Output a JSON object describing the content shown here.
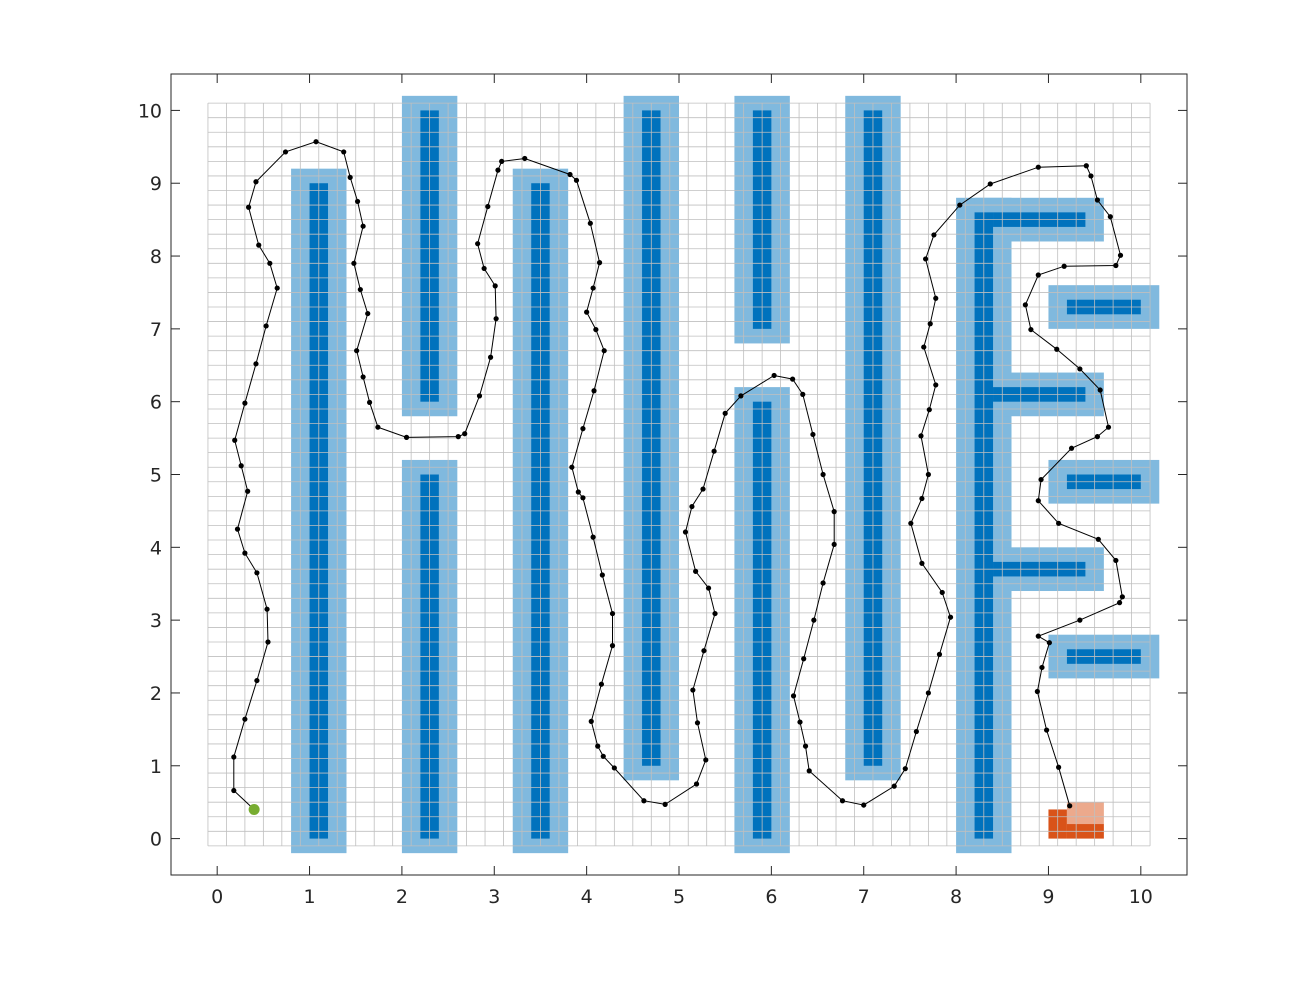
{
  "chart_data": {
    "type": "path-planning map",
    "xlim": [
      -0.5,
      10.5
    ],
    "ylim": [
      -0.5,
      10.5
    ],
    "xticks": [
      "0",
      "1",
      "2",
      "3",
      "4",
      "5",
      "6",
      "7",
      "8",
      "9",
      "10"
    ],
    "yticks": [
      "0",
      "1",
      "2",
      "3",
      "4",
      "5",
      "6",
      "7",
      "8",
      "9",
      "10"
    ],
    "grid_spacing": 0.2,
    "grid_range": {
      "x": [
        -0.1,
        10.1
      ],
      "y": [
        -0.1,
        10.1
      ]
    },
    "obstacle_inflation": 0.2,
    "colors": {
      "obstacle": "#0072BD",
      "inflation": "#80B9DE",
      "grid": "#BFBFBF",
      "path": "#000000",
      "start": "#77AC30",
      "goal": "#D95319",
      "goal_light": "#ECA98C"
    },
    "obstacles": [
      {
        "x": [
          1.0,
          1.2
        ],
        "y": [
          0.0,
          9.0
        ]
      },
      {
        "x": [
          2.2,
          2.4
        ],
        "y": [
          6.0,
          10.0
        ]
      },
      {
        "x": [
          2.2,
          2.4
        ],
        "y": [
          0.0,
          5.0
        ]
      },
      {
        "x": [
          3.4,
          3.6
        ],
        "y": [
          0.0,
          9.0
        ]
      },
      {
        "x": [
          4.6,
          4.8
        ],
        "y": [
          1.0,
          10.0
        ]
      },
      {
        "x": [
          5.8,
          6.0
        ],
        "y": [
          7.0,
          10.0
        ]
      },
      {
        "x": [
          5.8,
          6.0
        ],
        "y": [
          0.0,
          6.0
        ]
      },
      {
        "x": [
          7.0,
          7.2
        ],
        "y": [
          1.0,
          10.0
        ]
      },
      {
        "x": [
          8.2,
          8.4
        ],
        "y": [
          0.0,
          8.6
        ]
      },
      {
        "x": [
          8.4,
          9.4
        ],
        "y": [
          8.4,
          8.6
        ]
      },
      {
        "x": [
          8.4,
          9.4
        ],
        "y": [
          6.0,
          6.2
        ]
      },
      {
        "x": [
          8.4,
          9.4
        ],
        "y": [
          3.6,
          3.8
        ]
      },
      {
        "x": [
          9.2,
          10.0
        ],
        "y": [
          7.2,
          7.4
        ]
      },
      {
        "x": [
          9.2,
          10.0
        ],
        "y": [
          4.8,
          5.0
        ]
      },
      {
        "x": [
          9.2,
          10.0
        ],
        "y": [
          2.4,
          2.6
        ]
      }
    ],
    "start": {
      "x": 0.4,
      "y": 0.4
    },
    "goal_cells": [
      {
        "x": [
          9.0,
          9.2
        ],
        "y": [
          0.0,
          0.4
        ],
        "shade": "dark"
      },
      {
        "x": [
          9.2,
          9.6
        ],
        "y": [
          0.0,
          0.2
        ],
        "shade": "dark"
      },
      {
        "x": [
          9.2,
          9.6
        ],
        "y": [
          0.2,
          0.5
        ],
        "shade": "light"
      }
    ],
    "path": [
      [
        0.4,
        0.4
      ],
      [
        0.18,
        0.66
      ],
      [
        0.18,
        1.12
      ],
      [
        0.3,
        1.64
      ],
      [
        0.43,
        2.17
      ],
      [
        0.55,
        2.7
      ],
      [
        0.54,
        3.15
      ],
      [
        0.43,
        3.65
      ],
      [
        0.3,
        3.92
      ],
      [
        0.22,
        4.25
      ],
      [
        0.33,
        4.77
      ],
      [
        0.26,
        5.12
      ],
      [
        0.19,
        5.47
      ],
      [
        0.3,
        5.98
      ],
      [
        0.42,
        6.52
      ],
      [
        0.53,
        7.04
      ],
      [
        0.65,
        7.56
      ],
      [
        0.57,
        7.9
      ],
      [
        0.45,
        8.15
      ],
      [
        0.34,
        8.67
      ],
      [
        0.42,
        9.02
      ],
      [
        0.74,
        9.43
      ],
      [
        1.07,
        9.57
      ],
      [
        1.37,
        9.43
      ],
      [
        1.44,
        9.08
      ],
      [
        1.52,
        8.75
      ],
      [
        1.58,
        8.41
      ],
      [
        1.48,
        7.9
      ],
      [
        1.55,
        7.54
      ],
      [
        1.63,
        7.21
      ],
      [
        1.51,
        6.7
      ],
      [
        1.58,
        6.34
      ],
      [
        1.65,
        5.99
      ],
      [
        1.74,
        5.65
      ],
      [
        2.05,
        5.51
      ],
      [
        2.61,
        5.52
      ],
      [
        2.68,
        5.56
      ],
      [
        2.84,
        6.08
      ],
      [
        2.96,
        6.61
      ],
      [
        3.02,
        7.14
      ],
      [
        3.01,
        7.59
      ],
      [
        2.89,
        7.83
      ],
      [
        2.82,
        8.17
      ],
      [
        2.93,
        8.68
      ],
      [
        3.04,
        9.18
      ],
      [
        3.08,
        9.3
      ],
      [
        3.33,
        9.34
      ],
      [
        3.82,
        9.12
      ],
      [
        3.89,
        9.04
      ],
      [
        4.04,
        8.45
      ],
      [
        4.14,
        7.91
      ],
      [
        4.07,
        7.56
      ],
      [
        4.0,
        7.23
      ],
      [
        4.1,
        6.99
      ],
      [
        4.19,
        6.7
      ],
      [
        4.08,
        6.15
      ],
      [
        3.96,
        5.63
      ],
      [
        3.84,
        5.1
      ],
      [
        3.91,
        4.76
      ],
      [
        3.96,
        4.68
      ],
      [
        4.07,
        4.14
      ],
      [
        4.17,
        3.62
      ],
      [
        4.28,
        3.09
      ],
      [
        4.28,
        2.65
      ],
      [
        4.16,
        2.12
      ],
      [
        4.05,
        1.61
      ],
      [
        4.12,
        1.27
      ],
      [
        4.18,
        1.13
      ],
      [
        4.3,
        0.97
      ],
      [
        4.62,
        0.52
      ],
      [
        4.85,
        0.47
      ],
      [
        5.19,
        0.75
      ],
      [
        5.29,
        1.08
      ],
      [
        5.2,
        1.59
      ],
      [
        5.15,
        2.04
      ],
      [
        5.27,
        2.58
      ],
      [
        5.39,
        3.09
      ],
      [
        5.32,
        3.44
      ],
      [
        5.18,
        3.67
      ],
      [
        5.07,
        4.21
      ],
      [
        5.14,
        4.56
      ],
      [
        5.26,
        4.8
      ],
      [
        5.38,
        5.32
      ],
      [
        5.5,
        5.84
      ],
      [
        5.67,
        6.08
      ],
      [
        6.03,
        6.36
      ],
      [
        6.23,
        6.31
      ],
      [
        6.34,
        6.1
      ],
      [
        6.45,
        5.55
      ],
      [
        6.56,
        5.0
      ],
      [
        6.68,
        4.49
      ],
      [
        6.68,
        4.04
      ],
      [
        6.56,
        3.51
      ],
      [
        6.46,
        3.0
      ],
      [
        6.35,
        2.47
      ],
      [
        6.24,
        1.96
      ],
      [
        6.31,
        1.6
      ],
      [
        6.37,
        1.27
      ],
      [
        6.41,
        0.93
      ],
      [
        6.77,
        0.52
      ],
      [
        7.0,
        0.46
      ],
      [
        7.33,
        0.72
      ],
      [
        7.45,
        0.96
      ],
      [
        7.57,
        1.47
      ],
      [
        7.7,
        2.0
      ],
      [
        7.82,
        2.53
      ],
      [
        7.94,
        3.04
      ],
      [
        7.85,
        3.38
      ],
      [
        7.63,
        3.78
      ],
      [
        7.51,
        4.33
      ],
      [
        7.63,
        4.67
      ],
      [
        7.7,
        5.0
      ],
      [
        7.62,
        5.53
      ],
      [
        7.71,
        5.89
      ],
      [
        7.78,
        6.23
      ],
      [
        7.65,
        6.75
      ],
      [
        7.72,
        7.07
      ],
      [
        7.78,
        7.42
      ],
      [
        7.67,
        7.96
      ],
      [
        7.76,
        8.29
      ],
      [
        8.04,
        8.7
      ],
      [
        8.37,
        8.99
      ],
      [
        8.89,
        9.22
      ],
      [
        9.41,
        9.24
      ],
      [
        9.46,
        9.1
      ],
      [
        9.53,
        8.77
      ],
      [
        9.67,
        8.54
      ],
      [
        9.78,
        8.01
      ],
      [
        9.73,
        7.87
      ],
      [
        9.17,
        7.86
      ],
      [
        8.89,
        7.74
      ],
      [
        8.75,
        7.33
      ],
      [
        8.81,
        6.99
      ],
      [
        9.09,
        6.72
      ],
      [
        9.34,
        6.45
      ],
      [
        9.56,
        6.16
      ],
      [
        9.65,
        5.65
      ],
      [
        9.53,
        5.52
      ],
      [
        9.25,
        5.36
      ],
      [
        8.92,
        4.93
      ],
      [
        8.89,
        4.64
      ],
      [
        9.11,
        4.33
      ],
      [
        9.54,
        4.11
      ],
      [
        9.73,
        3.82
      ],
      [
        9.8,
        3.32
      ],
      [
        9.77,
        3.24
      ],
      [
        9.34,
        3.0
      ],
      [
        8.89,
        2.78
      ],
      [
        9.01,
        2.69
      ],
      [
        8.93,
        2.35
      ],
      [
        8.88,
        2.02
      ],
      [
        8.98,
        1.49
      ],
      [
        9.11,
        0.98
      ],
      [
        9.23,
        0.45
      ]
    ]
  }
}
